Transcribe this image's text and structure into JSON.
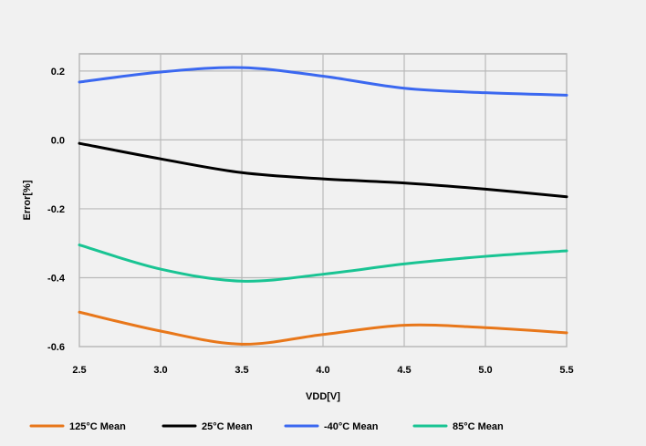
{
  "chart_data": {
    "type": "line",
    "xlabel": "VDD[V]",
    "ylabel": "Error[%]",
    "xlim": [
      2.5,
      5.5
    ],
    "ylim": [
      -0.6,
      0.2
    ],
    "grid": true,
    "legend_position": "bottom",
    "x_ticks": [
      "2.5",
      "3.0",
      "3.5",
      "4.0",
      "4.5",
      "5.0",
      "5.5"
    ],
    "y_ticks": [
      "0.2",
      "0.0",
      "-0.2",
      "-0.4",
      "-0.6"
    ],
    "series": [
      {
        "name": "125°C Mean",
        "color": "#e8771a",
        "x": [
          2.5,
          3.0,
          3.5,
          4.0,
          4.5,
          5.0,
          5.5
        ],
        "y": [
          -0.5,
          -0.555,
          -0.593,
          -0.565,
          -0.538,
          -0.545,
          -0.56
        ]
      },
      {
        "name": "25°C Mean",
        "color": "#000000",
        "x": [
          2.5,
          3.0,
          3.5,
          4.0,
          4.5,
          5.0,
          5.5
        ],
        "y": [
          -0.01,
          -0.055,
          -0.095,
          -0.113,
          -0.125,
          -0.143,
          -0.165
        ]
      },
      {
        "name": "-40°C Mean",
        "color": "#3b68f0",
        "x": [
          2.5,
          3.0,
          3.5,
          4.0,
          4.5,
          5.0,
          5.5
        ],
        "y": [
          0.168,
          0.197,
          0.21,
          0.185,
          0.15,
          0.137,
          0.13
        ]
      },
      {
        "name": "85°C Mean",
        "color": "#19c493",
        "x": [
          2.5,
          3.0,
          3.5,
          4.0,
          4.5,
          5.0,
          5.5
        ],
        "y": [
          -0.305,
          -0.375,
          -0.41,
          -0.39,
          -0.36,
          -0.338,
          -0.322
        ]
      }
    ]
  }
}
